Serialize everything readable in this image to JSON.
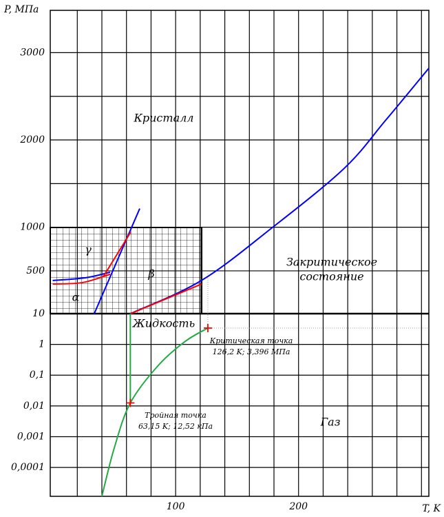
{
  "chart_data": {
    "type": "line",
    "x_label": "T, K",
    "y_label": "P, МПа",
    "xlim": [
      -2,
      306
    ],
    "xticks": [
      100,
      200
    ],
    "xgrid": [
      20,
      40,
      60,
      80,
      120,
      140,
      160,
      180,
      220,
      240,
      260,
      280,
      300
    ],
    "upper": {
      "ylim": [
        10,
        3485
      ],
      "yticks": [
        10,
        500,
        1000,
        2000,
        3000
      ],
      "ygrid": [
        1500,
        2500
      ]
    },
    "lower": {
      "ylim": [
        1.15e-05,
        10
      ],
      "log": true,
      "yticks": [
        1,
        {
          "value": 0.1,
          "label": "0,1"
        },
        {
          "value": 0.01,
          "label": "0,01"
        },
        {
          "value": 0.001,
          "label": "0,001"
        },
        {
          "value": 0.0001,
          "label": "0,0001"
        }
      ]
    },
    "series": [
      {
        "color": "#0000ff",
        "panel": "upper",
        "x": [
          63.15,
          121,
          179,
          237,
          271,
          306
        ],
        "values": [
          10,
          390,
          1000,
          1673,
          2228,
          2822
        ]
      },
      {
        "color": "#0000ff",
        "panel": "upper",
        "x": [
          33.8,
          70.8
        ],
        "values": [
          10,
          1214
        ]
      },
      {
        "color": "#0000ff",
        "panel": "upper",
        "x": [
          0,
          27,
          46.7
        ],
        "values": [
          390,
          422,
          485
        ]
      },
      {
        "color": "#ff0000",
        "panel": "upper",
        "x": [
          0,
          24.3,
          46.7
        ],
        "values": [
          350,
          366,
          461
        ]
      },
      {
        "color": "#ff0000",
        "panel": "upper",
        "x": [
          41,
          63.5
        ],
        "values": [
          430,
          945
        ]
      },
      {
        "color": "#ff0000",
        "panel": "upper",
        "x": [
          63.5,
          121.2
        ],
        "values": [
          10,
          350
        ]
      },
      {
        "color": "#22aa44",
        "panel": "lower",
        "x": [
          40,
          50,
          63.15,
          86,
          108,
          126.2
        ],
        "values": [
          1.15e-05,
          0.00042,
          0.01252,
          0.21,
          1.27,
          3.396
        ]
      },
      {
        "color": "#22aa44",
        "panel": "lower",
        "x": [
          63.15,
          63.15
        ],
        "values": [
          0.01252,
          10
        ]
      }
    ],
    "points": [
      {
        "panel": "lower",
        "x": 63.15,
        "value": 0.01252,
        "label": "Тройная точка",
        "sublabel": "63,15 K; 12,52 кПа"
      },
      {
        "panel": "lower",
        "x": 126.2,
        "value": 3.396,
        "label": "Критическая точка",
        "sublabel": "126,2 K; 3,396 МПа"
      }
    ],
    "regions": [
      "Кристалл",
      "Закритическое",
      "состояние",
      "Жидкость",
      "Газ",
      "γ",
      "β",
      "α"
    ]
  }
}
